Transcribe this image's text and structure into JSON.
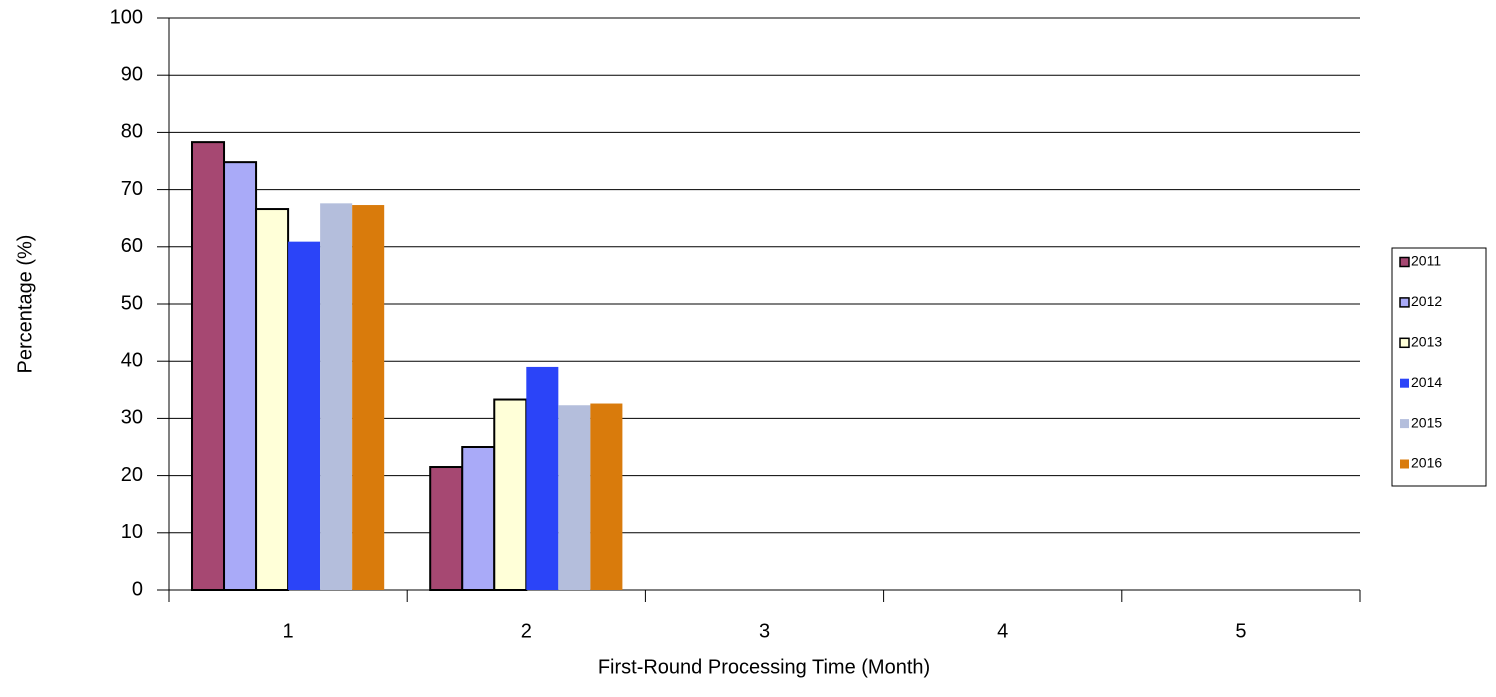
{
  "chart_data": {
    "type": "bar",
    "xlabel": "First-Round Processing Time (Month)",
    "ylabel": "Percentage (%)",
    "categories": [
      "1",
      "2",
      "3",
      "4",
      "5"
    ],
    "series": [
      {
        "name": "2011",
        "color": "#a64872",
        "edgecolor": "#000000",
        "values": [
          78.3,
          21.5,
          null,
          null,
          null
        ]
      },
      {
        "name": "2012",
        "color": "#a9aaf8",
        "edgecolor": "#000000",
        "values": [
          74.8,
          25,
          null,
          null,
          null
        ]
      },
      {
        "name": "2013",
        "color": "#ffffd8",
        "edgecolor": "#000000",
        "values": [
          66.6,
          33.3,
          null,
          null,
          null
        ]
      },
      {
        "name": "2014",
        "color": "#2b44f8",
        "values": [
          60.9,
          39,
          null,
          null,
          null
        ]
      },
      {
        "name": "2015",
        "color": "#b4bedc",
        "values": [
          67.6,
          32.3,
          null,
          null,
          null
        ]
      },
      {
        "name": "2016",
        "color": "#d97b0c",
        "values": [
          67.3,
          32.6,
          null,
          null,
          null
        ]
      }
    ],
    "ylim": [
      0,
      100
    ],
    "yticks": [
      0,
      10,
      20,
      30,
      40,
      50,
      60,
      70,
      80,
      90,
      100
    ],
    "grid": true,
    "legend": "right"
  }
}
